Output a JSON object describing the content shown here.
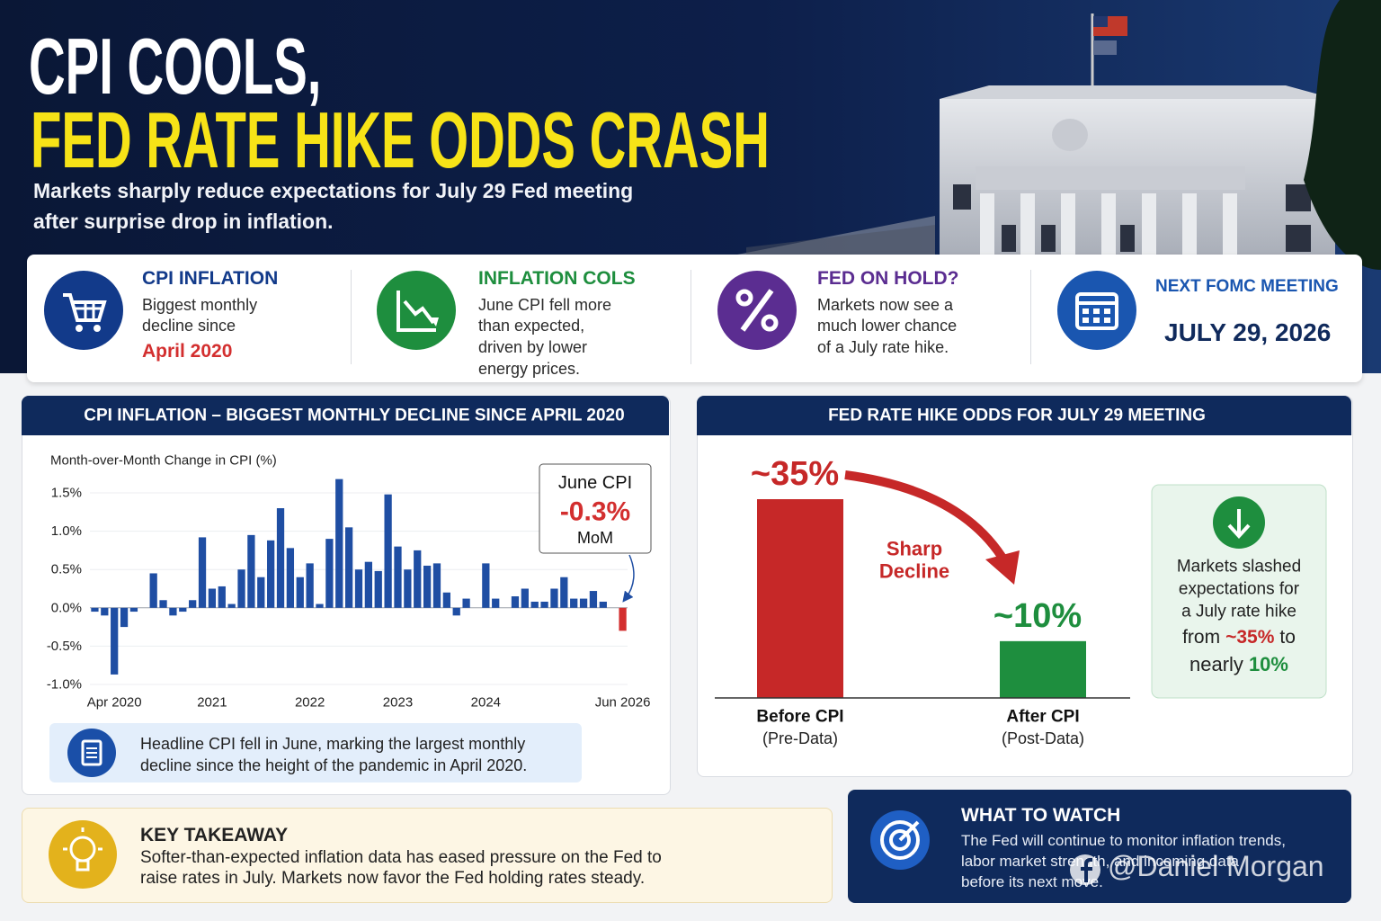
{
  "header": {
    "title_line1": "CPI COOLS,",
    "title_line2": "FED RATE HIKE ODDS CRASH",
    "subtitle_lines": [
      "Markets sharply reduce expectations for July 29 Fed meeting",
      "after surprise drop in inflation."
    ]
  },
  "cards": [
    {
      "title": "CPI INFLATION",
      "lines": [
        "Biggest monthly",
        "decline since"
      ],
      "highlight": "April 2020"
    },
    {
      "title": "INFLATION COLS",
      "lines": [
        "June CPI fell more",
        "than expected,",
        "driven by lower",
        "energy prices."
      ]
    },
    {
      "title": "FED ON HOLD?",
      "lines": [
        "Markets now see a",
        "much lower chance",
        "of a July rate hike."
      ]
    },
    {
      "title": "NEXT FOMC MEETING",
      "date": "JULY 29, 2026"
    }
  ],
  "chart_data": [
    {
      "type": "bar",
      "title": "CPI INFLATION – BIGGEST MONTHLY DECLINE SINCE APRIL 2020",
      "y_label": "Month-over-Month Change in CPI (%)",
      "categories": [
        null,
        null,
        "Apr 2020",
        null,
        null,
        null,
        null,
        null,
        null,
        null,
        null,
        null,
        "2021",
        null,
        null,
        null,
        null,
        null,
        null,
        null,
        null,
        null,
        "2022",
        null,
        null,
        null,
        null,
        null,
        null,
        null,
        null,
        "2023",
        null,
        null,
        null,
        null,
        null,
        null,
        null,
        null,
        "2024",
        null,
        null,
        null,
        null,
        null,
        null,
        null,
        null,
        null,
        null,
        null,
        null,
        null,
        "Jun 2026"
      ],
      "values": [
        -0.05,
        -0.1,
        -0.87,
        -0.25,
        -0.05,
        0.0,
        0.45,
        0.1,
        -0.1,
        -0.05,
        0.1,
        0.92,
        0.25,
        0.28,
        0.05,
        0.5,
        0.95,
        0.4,
        0.88,
        1.3,
        0.78,
        0.4,
        0.58,
        0.05,
        0.9,
        1.68,
        1.05,
        0.5,
        0.6,
        0.48,
        1.48,
        0.8,
        0.5,
        0.75,
        0.55,
        0.58,
        0.2,
        -0.1,
        0.12,
        0.0,
        0.58,
        0.12,
        0.0,
        0.15,
        0.25,
        0.08,
        0.08,
        0.25,
        0.4,
        0.12,
        0.12,
        0.22,
        0.08,
        0.0,
        -0.3
      ],
      "color": "#1f4ea3",
      "last_color": "#d32f2f",
      "ylim": [
        -1.0,
        1.5
      ],
      "yticks": [
        {
          "value": -1.0,
          "label": "-1.0%"
        },
        {
          "value": -0.5,
          "label": "-0.5%"
        },
        {
          "value": 0.0,
          "label": "0.0%"
        },
        {
          "value": 0.5,
          "label": "0.5%"
        },
        {
          "value": 1.0,
          "label": "1.0%"
        },
        {
          "value": 1.5,
          "label": "1.5%"
        }
      ],
      "grid": true,
      "annotation": {
        "title": "June CPI",
        "value": "-0.3%",
        "note": "MoM"
      }
    },
    {
      "type": "bar",
      "title": "FED RATE HIKE ODDS FOR JULY 29 MEETING",
      "categories": [
        "Before CPI",
        "After CPI"
      ],
      "category_notes": [
        "(Pre-Data)",
        "(Post-Data)"
      ],
      "values": [
        35,
        10
      ],
      "value_labels": [
        "~35%",
        "~10%"
      ],
      "colors": [
        "#c62828",
        "#1e8e3e"
      ],
      "annotation_lines": [
        "Sharp",
        "Decline"
      ],
      "callout": {
        "lines": [
          "Markets slashed",
          "expectations for",
          "a July rate hike"
        ],
        "from_text": "from",
        "from_value": "~35%",
        "to_text": "to",
        "nearly_text": "nearly",
        "nearly_value": "10%"
      }
    }
  ],
  "cpi_note": {
    "lines": [
      "Headline CPI fell in June, marking the largest monthly",
      "decline since the height of the pandemic in April 2020."
    ]
  },
  "key_takeaway": {
    "title": "KEY TAKEAWAY",
    "lines": [
      "Softer-than-expected inflation data has eased pressure on the Fed to",
      "raise rates in July. Markets now favor the Fed holding rates steady."
    ]
  },
  "what_to_watch": {
    "title": "WHAT TO WATCH",
    "lines": [
      "The Fed will continue to monitor inflation trends,",
      "labor market strength, and incoming data",
      "before its next move."
    ]
  },
  "watermark": "@Daniel Morgan"
}
